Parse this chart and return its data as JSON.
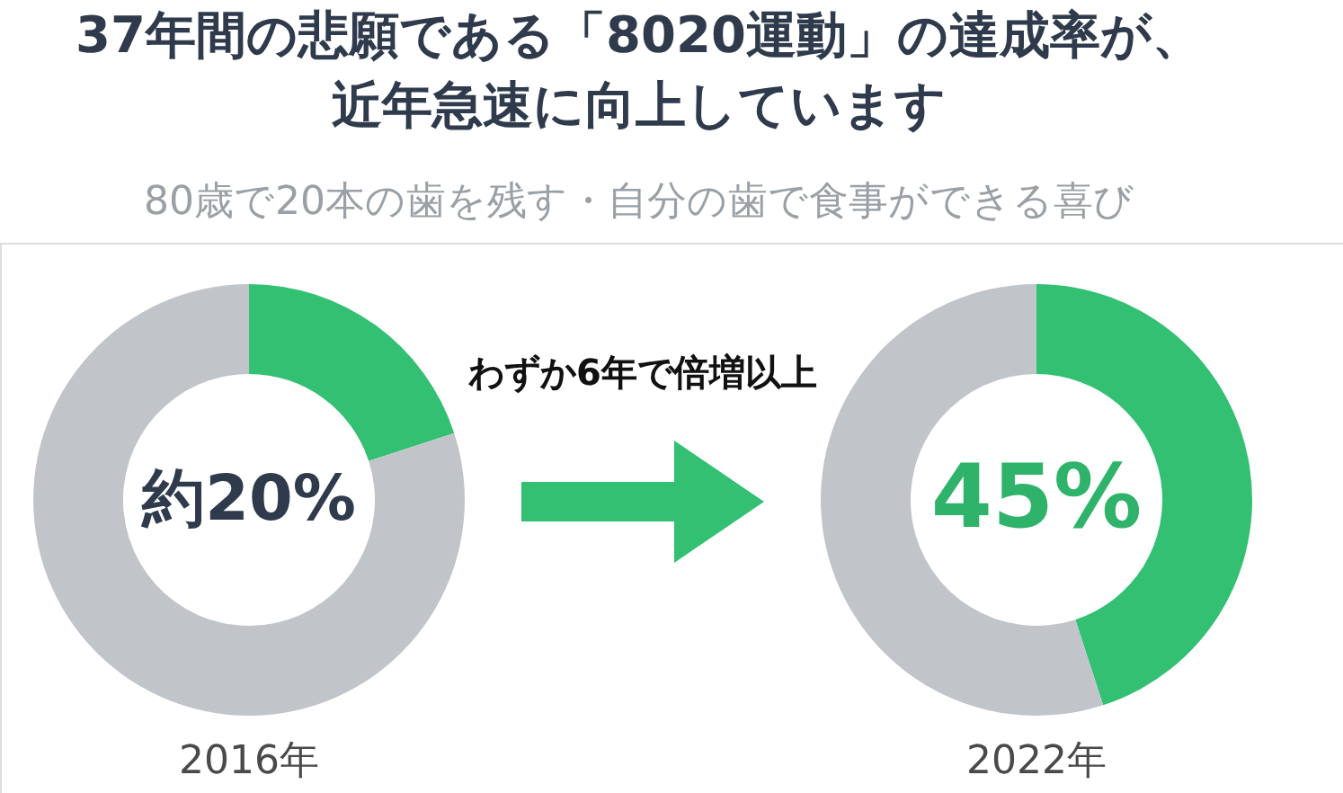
{
  "chart_data": [
    {
      "type": "donut",
      "title": "37年間の悲願である「8020運動」の達成率が、近年急速に向上しています",
      "subtitle": "80歳で20本の歯を残す・自分の歯で食事ができる喜び",
      "xlabel": "2016年",
      "categories": [
        null,
        null
      ],
      "values": [
        20,
        80
      ],
      "colors": [
        "#33c072",
        "#c1c5ca"
      ],
      "value_labels": [
        "約20%",
        null
      ]
    },
    {
      "type": "donut",
      "xlabel": "2022年",
      "annotations": [
        "わずか6年で倍増以上"
      ],
      "categories": [
        null,
        null
      ],
      "values": [
        45,
        55
      ],
      "colors": [
        "#33c072",
        "#c1c5ca"
      ],
      "value_labels": [
        "45%",
        null
      ]
    }
  ]
}
